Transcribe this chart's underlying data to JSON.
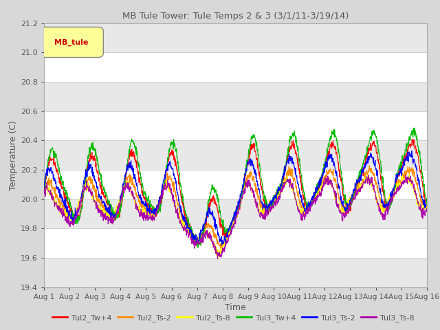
{
  "title": "MB Tule Tower: Tule Temps 2 & 3 (3/1/11-3/19/14)",
  "xlabel": "Time",
  "ylabel": "Temperature (C)",
  "ylim": [
    19.4,
    21.2
  ],
  "yticks": [
    19.4,
    19.6,
    19.8,
    20.0,
    20.2,
    20.4,
    20.6,
    20.8,
    21.0,
    21.2
  ],
  "xlim": [
    0,
    15
  ],
  "xtick_labels": [
    "Aug 1",
    "Aug 2",
    "Aug 3",
    "Aug 4",
    "Aug 5",
    "Aug 6",
    "Aug 7",
    "Aug 8",
    "Aug 9",
    "Aug 10",
    "Aug 11",
    "Aug 12",
    "Aug 13",
    "Aug 14",
    "Aug 15",
    "Aug 16"
  ],
  "series_colors": {
    "Tul2_Tw+4": "#ff0000",
    "Tul2_Ts-2": "#ff8c00",
    "Tul2_Ts-8": "#ffff00",
    "Tul3_Tw+4": "#00bb00",
    "Tul3_Ts-2": "#0000ff",
    "Tul3_Ts-8": "#aa00aa"
  },
  "legend_label": "MB_tule",
  "legend_fg": "#cc0000",
  "legend_bg": "#ffff99",
  "bg_color": "#d8d8d8",
  "plot_bg_color": "#ffffff",
  "band_color": "#e8e8e8",
  "title_color": "#555555",
  "label_color": "#555555",
  "tick_color": "#555555",
  "grid_color": "#c8c8c8"
}
